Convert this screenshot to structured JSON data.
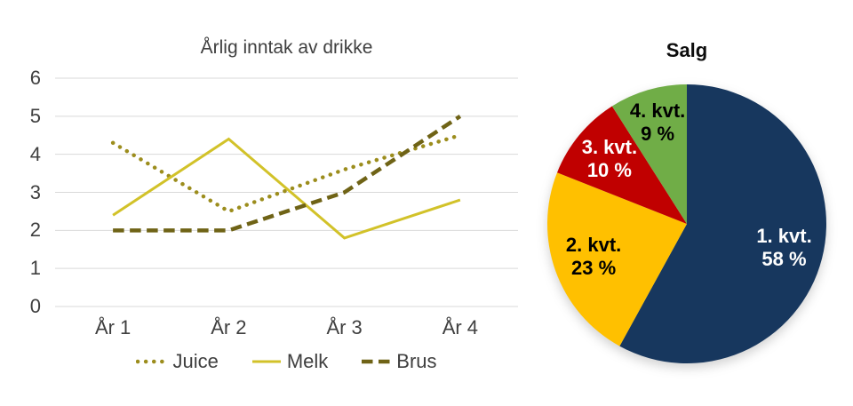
{
  "canvas": {
    "background": "#FFFFFF"
  },
  "chart_data": [
    {
      "type": "line",
      "title": "Årlig inntak av drikke",
      "xlabel": "",
      "ylabel": "",
      "categories": [
        "År 1",
        "År 2",
        "År 3",
        "År 4"
      ],
      "series": [
        {
          "name": "Juice",
          "style": "dotted",
          "color": "#9C8D1D",
          "values": [
            4.3,
            2.5,
            3.6,
            4.5
          ]
        },
        {
          "name": "Melk",
          "style": "solid",
          "color": "#D2C229",
          "values": [
            2.4,
            4.4,
            1.8,
            2.8
          ]
        },
        {
          "name": "Brus",
          "style": "dashed",
          "color": "#6F6316",
          "values": [
            2.0,
            2.0,
            3.0,
            5.0
          ]
        }
      ],
      "ylim": [
        0,
        6
      ],
      "yticks": [
        0,
        1,
        2,
        3,
        4,
        5,
        6
      ],
      "grid": true,
      "gridline_color": "#D9D9D9",
      "text_color": "#3F3F3F",
      "legend_position": "bottom"
    },
    {
      "type": "pie",
      "title": "Salg",
      "start_angle_deg": 0,
      "direction": "clockwise",
      "slices": [
        {
          "label": "1. kvt.",
          "percent_label": "58 %",
          "value": 58,
          "color": "#17375E",
          "text_color": "#FFFFFF"
        },
        {
          "label": "2. kvt.",
          "percent_label": "23 %",
          "value": 23,
          "color": "#FFC000",
          "text_color": "#000000"
        },
        {
          "label": "3. kvt.",
          "percent_label": "10 %",
          "value": 10,
          "color": "#C00000",
          "text_color": "#FFFFFF"
        },
        {
          "label": "4. kvt.",
          "percent_label": "9 %",
          "value": 9,
          "color": "#70AD47",
          "text_color": "#000000"
        }
      ]
    }
  ]
}
